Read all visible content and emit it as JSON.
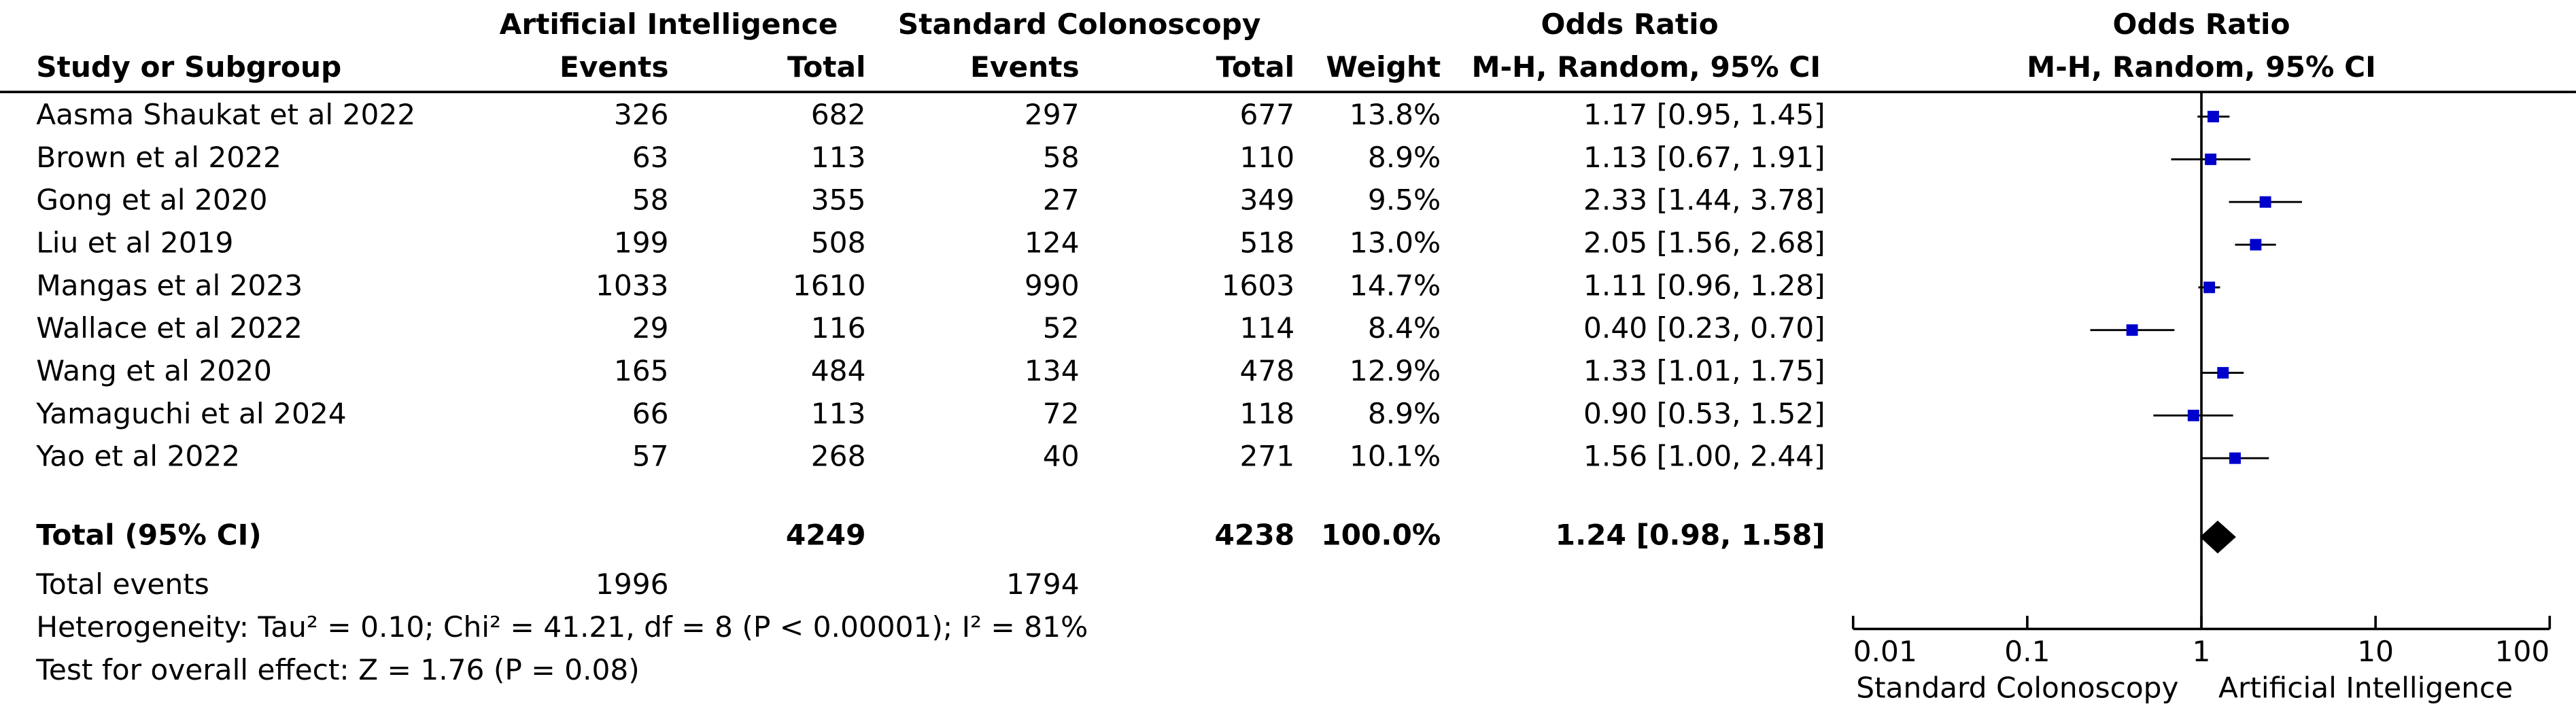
{
  "header": {
    "group1": "Artificial Intelligence",
    "group2": "Standard Colonoscopy",
    "or_title": "Odds Ratio",
    "or_method": "M-H, Random, 95% CI"
  },
  "columns": [
    "Study or Subgroup",
    "Events",
    "Total",
    "Events",
    "Total",
    "Weight"
  ],
  "rows": [
    [
      "Aasma Shaukat et al 2022",
      "326",
      "682",
      "297",
      "677",
      "13.8%"
    ],
    [
      "Brown et al 2022",
      "63",
      "113",
      "58",
      "110",
      "8.9%"
    ],
    [
      "Gong et al 2020",
      "58",
      "355",
      "27",
      "349",
      "9.5%"
    ],
    [
      "Liu et al 2019",
      "199",
      "508",
      "124",
      "518",
      "13.0%"
    ],
    [
      "Mangas et al 2023",
      "1033",
      "1610",
      "990",
      "1603",
      "14.7%"
    ],
    [
      "Wallace et al 2022",
      "29",
      "116",
      "52",
      "114",
      "8.4%"
    ],
    [
      "Wang et al 2020",
      "165",
      "484",
      "134",
      "478",
      "12.9%"
    ],
    [
      "Yamaguchi et al 2024",
      "66",
      "113",
      "72",
      "118",
      "8.9%"
    ],
    [
      "Yao et al 2022",
      "57",
      "268",
      "40",
      "271",
      "10.1%"
    ]
  ],
  "total_row": [
    "Total (95% CI)",
    "4249",
    "4238",
    "100.0%"
  ],
  "total_events": [
    "Total events",
    "1996",
    "1794"
  ],
  "heterogeneity": "Heterogeneity: Tau² = 0.10; Chi² = 41.21, df = 8 (P < 0.00001); I² = 81%",
  "overall_effect": "Test for overall effect: Z = 1.76 (P = 0.08)",
  "chart_data": {
    "type": "forest",
    "title": "Odds Ratio",
    "subtitle": "M-H, Random, 95% CI",
    "log_scale": true,
    "xlim": [
      0.01,
      100
    ],
    "xticks": [
      0.01,
      0.1,
      1,
      10,
      100
    ],
    "x_label_left": "Standard Colonoscopy",
    "x_label_right": "Artificial Intelligence",
    "color": "#0000cc",
    "values": [
      1.17,
      1.13,
      2.33,
      2.05,
      1.11,
      0.4,
      1.33,
      0.9,
      1.56
    ],
    "ci_low": [
      0.95,
      0.67,
      1.44,
      1.56,
      0.96,
      0.23,
      1.01,
      0.53,
      1.0
    ],
    "ci_high": [
      1.45,
      1.91,
      3.78,
      2.68,
      1.28,
      0.7,
      1.75,
      1.52,
      2.44
    ],
    "value_labels": [
      "1.17 [0.95, 1.45]",
      "1.13 [0.67, 1.91]",
      "2.33 [1.44, 3.78]",
      "2.05 [1.56, 2.68]",
      "1.11 [0.96, 1.28]",
      "0.40 [0.23, 0.70]",
      "1.33 [1.01, 1.75]",
      "0.90 [0.53, 1.52]",
      "1.56 [1.00, 2.44]"
    ],
    "total": {
      "value": 1.24,
      "ci_low": 0.98,
      "ci_high": 1.58,
      "label": "1.24 [0.98, 1.58]"
    }
  }
}
